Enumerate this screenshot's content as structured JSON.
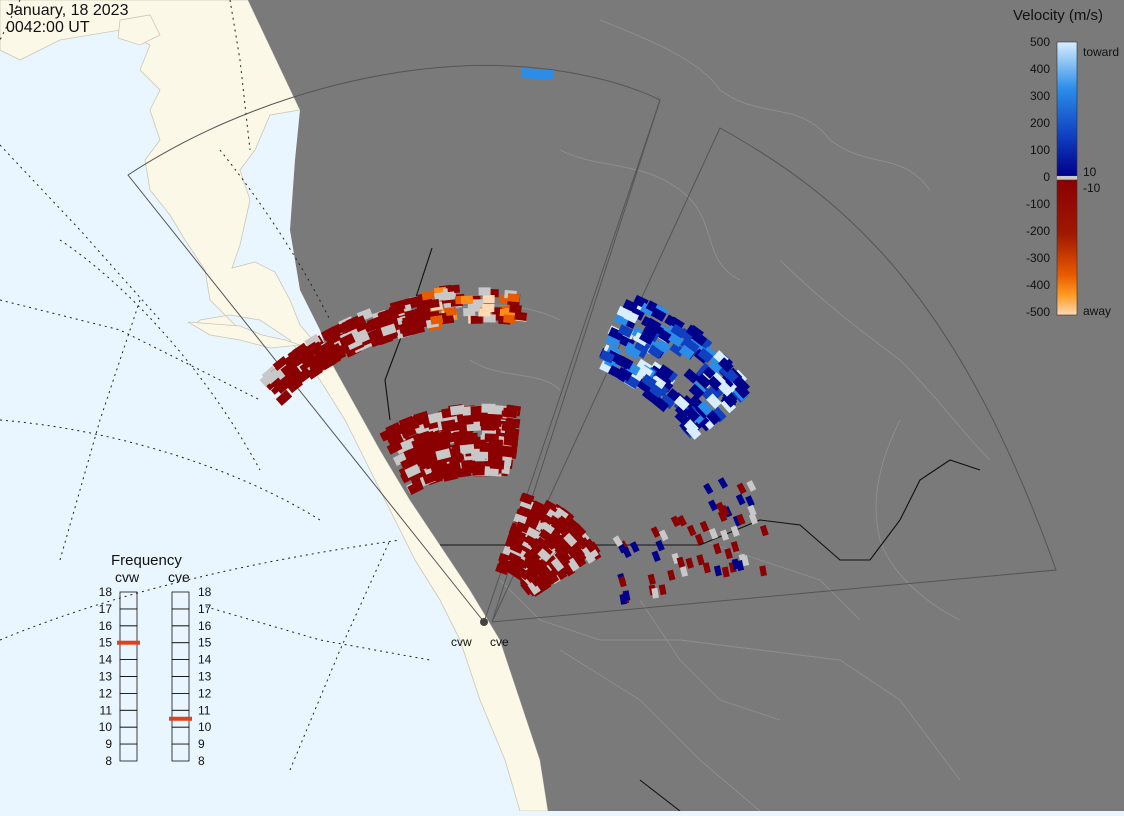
{
  "header": {
    "date": "January, 18 2023",
    "time": "0042:00 UT"
  },
  "colorbar": {
    "title": "Velocity (m/s)",
    "ticks": [
      "500",
      "400",
      "300",
      "200",
      "100",
      "0",
      "-100",
      "-200",
      "-300",
      "-400",
      "-500"
    ],
    "label_toward": "toward",
    "label_away": "away",
    "label_plus": "10",
    "label_minus": "-10",
    "colors": {
      "toward_high": "#d6eeff",
      "toward_mid": "#2b8de8",
      "toward_low": "#00008b",
      "away_low": "#8b0000",
      "away_mid": "#e85a00",
      "away_high": "#ffd9b3",
      "ground_scatter": "#c8c8c8"
    }
  },
  "frequency": {
    "title": "Frequency",
    "radars": [
      {
        "name": "cvw",
        "value_mhz": 15
      },
      {
        "name": "cve",
        "value_mhz": 10.5
      }
    ],
    "scale": [
      "18",
      "17",
      "16",
      "15",
      "14",
      "13",
      "12",
      "11",
      "10",
      "9",
      "8"
    ],
    "marker_color": "#e0401a"
  },
  "sites": {
    "cvw_label": "cvw",
    "cve_label": "cve"
  },
  "map_colors": {
    "ocean": "#eaf6ff",
    "land_day": "#fbf8e8",
    "night": "#7a7a7a",
    "fov": "#555555"
  }
}
